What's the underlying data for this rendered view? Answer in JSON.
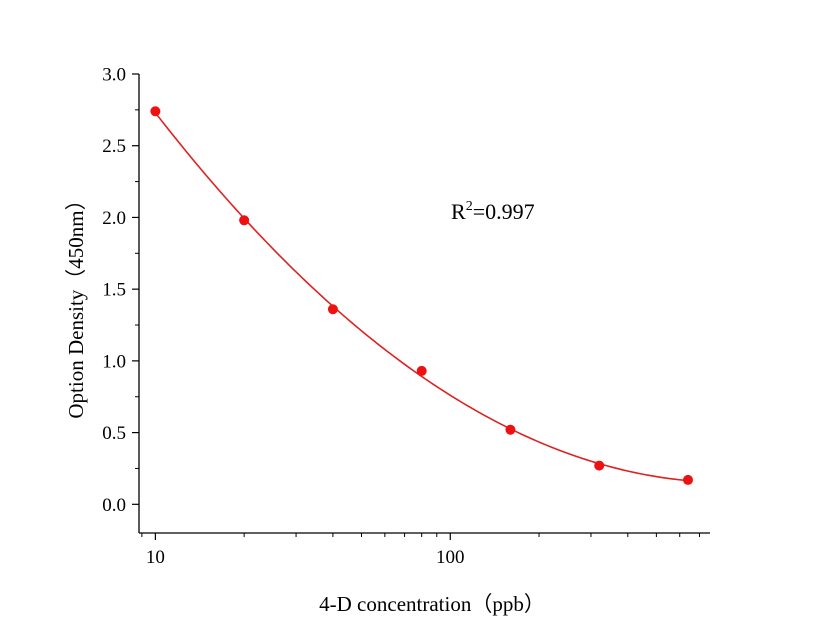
{
  "chart_data": {
    "type": "scatter",
    "title": "",
    "xlabel": "4-D concentration（ppb）",
    "ylabel": "Option Density（450nm）",
    "x_scale": "log",
    "xlim": [
      8.8,
      760
    ],
    "ylim": [
      -0.2,
      3.0
    ],
    "x_tick_labels": [
      "10",
      "100"
    ],
    "y_tick_labels": [
      "0.0",
      "0.5",
      "1.0",
      "1.5",
      "2.0",
      "2.5",
      "3.0"
    ],
    "series": [
      {
        "x": [
          10,
          20,
          40,
          80,
          160,
          320,
          640
        ],
        "y": [
          2.74,
          1.98,
          1.36,
          0.93,
          0.52,
          0.27,
          0.17
        ],
        "marker_color": "#ee1111",
        "curve_color": "#dd2222"
      }
    ],
    "annotation": {
      "base": "R",
      "superscript": "2",
      "value": "=0.997"
    },
    "grid": false
  }
}
